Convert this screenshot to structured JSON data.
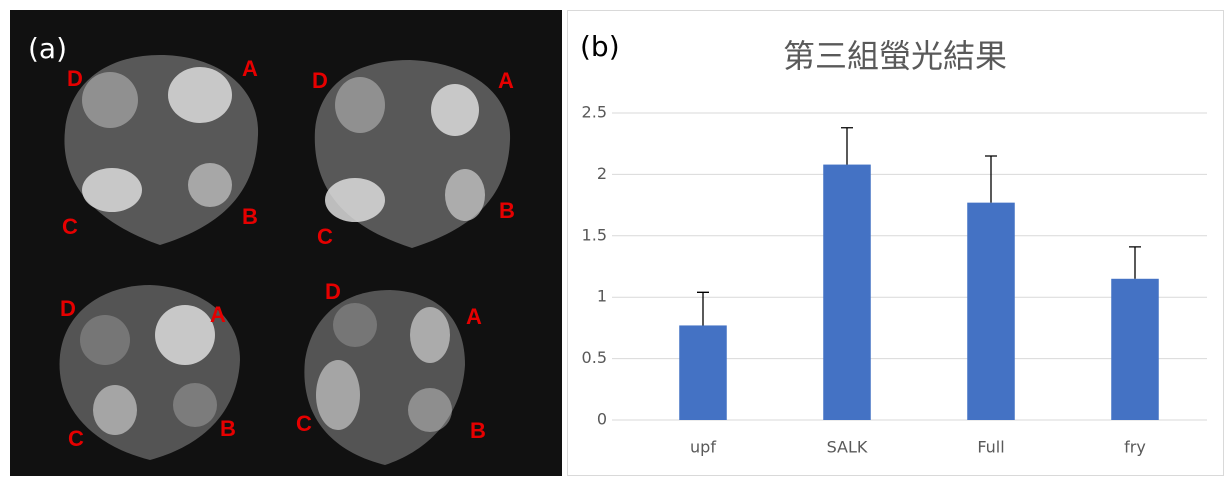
{
  "panel_a": {
    "label": "(a)",
    "leaves": [
      {
        "spots": [
          "A",
          "B",
          "C",
          "D"
        ]
      },
      {
        "spots": [
          "A",
          "B",
          "C",
          "D"
        ]
      },
      {
        "spots": [
          "A",
          "B",
          "C",
          "D"
        ]
      },
      {
        "spots": [
          "A",
          "B",
          "C",
          "D"
        ]
      }
    ]
  },
  "chart_data": {
    "type": "bar",
    "panel_label": "(b)",
    "title": "第三組螢光結果",
    "categories": [
      "upf",
      "SALK",
      "Full",
      "fry"
    ],
    "values": [
      0.77,
      2.08,
      1.77,
      1.15
    ],
    "errors": [
      0.27,
      0.3,
      0.38,
      0.26
    ],
    "color": "#4472c4",
    "ylim": [
      0,
      2.5
    ],
    "yticks": [
      0,
      0.5,
      1,
      1.5,
      2,
      2.5
    ],
    "grid": true
  }
}
